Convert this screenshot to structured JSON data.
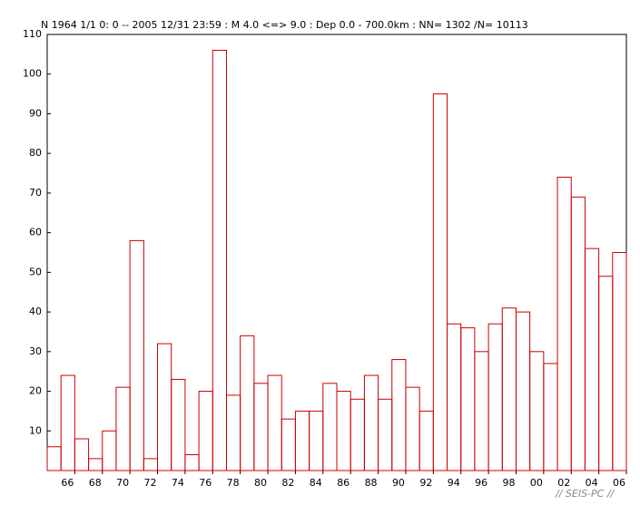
{
  "chart_data": {
    "type": "histogram",
    "title": "N  1964 1/1  0: 0 -- 2005 12/31 23:59  : M 4.0 <=> 9.0   :  Dep 0.0 - 700.0km :  NN= 1302 /N= 10113",
    "annotation": "// SEIS-PC //",
    "bins": [
      1964,
      1965,
      1966,
      1967,
      1968,
      1969,
      1970,
      1971,
      1972,
      1973,
      1974,
      1975,
      1976,
      1977,
      1978,
      1979,
      1980,
      1981,
      1982,
      1983,
      1984,
      1985,
      1986,
      1987,
      1988,
      1989,
      1990,
      1991,
      1992,
      1993,
      1994,
      1995,
      1996,
      1997,
      1998,
      1999,
      2000,
      2001,
      2002,
      2003,
      2004,
      2005,
      2006
    ],
    "values": [
      6,
      24,
      8,
      3,
      10,
      21,
      58,
      3,
      32,
      23,
      4,
      20,
      106,
      19,
      34,
      22,
      24,
      13,
      15,
      15,
      22,
      20,
      18,
      24,
      18,
      28,
      21,
      15,
      95,
      37,
      36,
      30,
      37,
      41,
      40,
      30,
      27,
      74,
      69,
      56,
      49,
      55
    ],
    "color": "#cc0000",
    "xlim": [
      1964,
      2006
    ],
    "xticks": [
      {
        "value": 1966,
        "label": "66"
      },
      {
        "value": 1968,
        "label": "68"
      },
      {
        "value": 1970,
        "label": "70"
      },
      {
        "value": 1972,
        "label": "72"
      },
      {
        "value": 1974,
        "label": "74"
      },
      {
        "value": 1976,
        "label": "76"
      },
      {
        "value": 1978,
        "label": "78"
      },
      {
        "value": 1980,
        "label": "80"
      },
      {
        "value": 1982,
        "label": "82"
      },
      {
        "value": 1984,
        "label": "84"
      },
      {
        "value": 1986,
        "label": "86"
      },
      {
        "value": 1988,
        "label": "88"
      },
      {
        "value": 1990,
        "label": "90"
      },
      {
        "value": 1992,
        "label": "92"
      },
      {
        "value": 1994,
        "label": "94"
      },
      {
        "value": 1996,
        "label": "96"
      },
      {
        "value": 1998,
        "label": "98"
      },
      {
        "value": 2000,
        "label": "00"
      },
      {
        "value": 2002,
        "label": "02"
      },
      {
        "value": 2004,
        "label": "04"
      },
      {
        "value": 2006,
        "label": "06"
      }
    ],
    "ylim": [
      0,
      110
    ],
    "yticks": [
      10,
      20,
      30,
      40,
      50,
      60,
      70,
      80,
      90,
      100,
      110
    ]
  }
}
